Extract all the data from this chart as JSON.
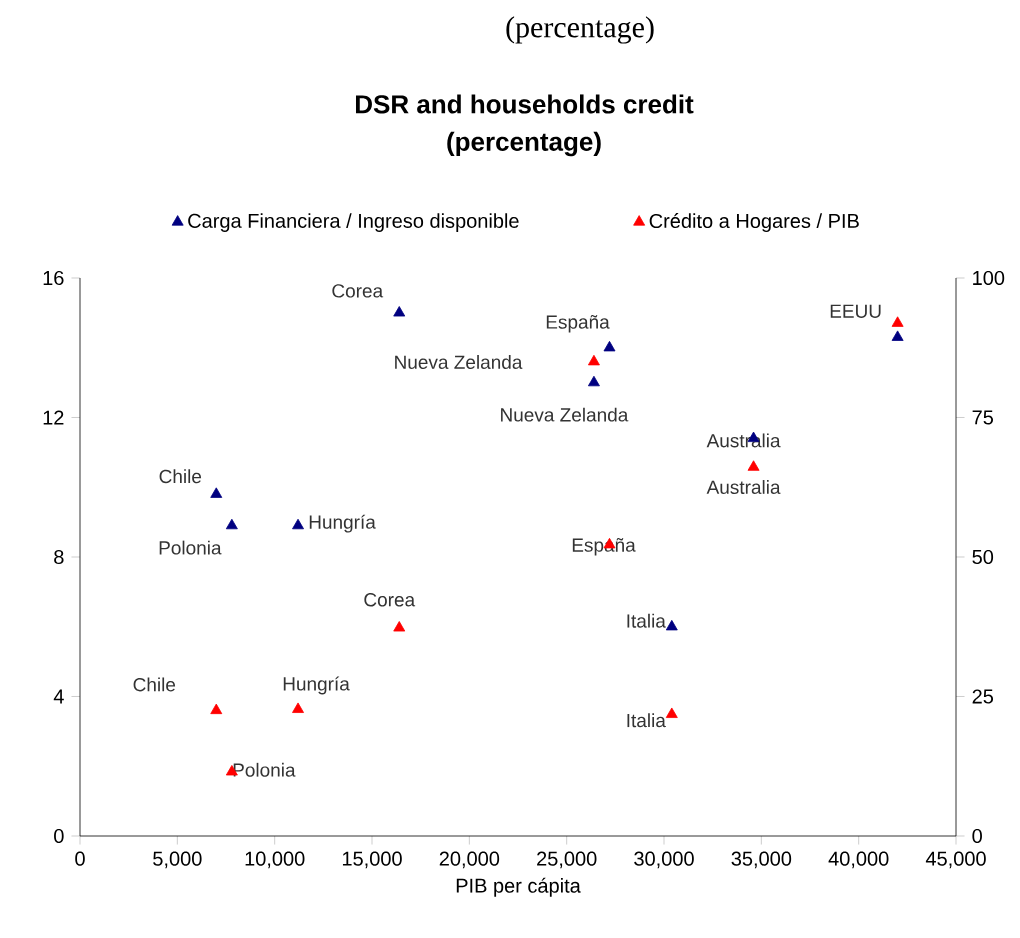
{
  "chart_data": {
    "type": "scatter",
    "title": "DSR and households credit",
    "subtitle": "(percentage)",
    "xlabel": "PIB per cápita",
    "x": [
      7000,
      7800,
      11200,
      16400,
      26400,
      27200,
      34600,
      30400,
      42000
    ],
    "series": [
      {
        "name": "Carga Financiera / Ingreso disponible",
        "color": "#000080",
        "values": [
          9.8,
          8.9,
          8.9,
          15.0,
          13.0,
          14.0,
          11.4,
          6.0,
          14.3
        ]
      },
      {
        "name": "Crédito a Hogares / PIB",
        "color": "#ff0000",
        "axis": "y2",
        "values": [
          22.5,
          11.5,
          22.7,
          37.3,
          85.0,
          52.2,
          66.1,
          21.8,
          91.9
        ]
      }
    ],
    "xlim": [
      0,
      45000
    ],
    "xticks": [
      0,
      {
        "value": 5000,
        "label": "5,000"
      },
      {
        "value": 10000,
        "label": "10,000"
      },
      {
        "value": 15000,
        "label": "15,000"
      },
      {
        "value": 20000,
        "label": "20,000"
      },
      {
        "value": 25000,
        "label": "25,000"
      },
      {
        "value": 30000,
        "label": "30,000"
      },
      {
        "value": 35000,
        "label": "35,000"
      },
      {
        "value": 40000,
        "label": "40,000"
      },
      {
        "value": 45000,
        "label": "45,000"
      }
    ],
    "ylim": [
      0,
      16
    ],
    "yticks": [
      0,
      4,
      8,
      12,
      16
    ],
    "y2lim": [
      0,
      100
    ],
    "y2ticks": [
      0,
      25,
      50,
      75,
      100
    ],
    "marker": "triangle",
    "legend": "top",
    "grid": false,
    "annotations": [
      "(percentage)",
      {
        "text": "Chile",
        "x": 7000,
        "y": 9.8
      },
      {
        "text": "Polonia",
        "x": 7800,
        "y": 8.9
      },
      {
        "text": "Hungría",
        "x": 11200,
        "y": 8.9
      },
      {
        "text": "Corea",
        "x": 16400,
        "y": 15.0
      },
      {
        "text": "Nueva Zelanda",
        "x": 26400,
        "y": 13.0
      },
      {
        "text": "España",
        "x": 27200,
        "y": 14.0
      },
      {
        "text": "Australia",
        "x": 34600,
        "y": 11.4
      },
      {
        "text": "Italia",
        "x": 30400,
        "y": 6.0
      },
      {
        "text": "EEUU",
        "x": 42000,
        "y": 14.3
      },
      {
        "text": "Chile",
        "x": 7000,
        "y": 3.6
      },
      {
        "text": "Polonia",
        "x": 7800,
        "y": 1.84
      },
      {
        "text": "Hungría",
        "x": 11200,
        "y": 3.63
      },
      {
        "text": "Corea",
        "x": 16400,
        "y": 5.97
      },
      "Nueva Zelanda",
      {
        "text": "España",
        "x": 27200,
        "y": 8.35
      },
      {
        "text": "Australia",
        "x": 34600,
        "y": 10.58
      },
      {
        "text": "Italia",
        "x": 30400,
        "y": 3.49
      }
    ]
  }
}
